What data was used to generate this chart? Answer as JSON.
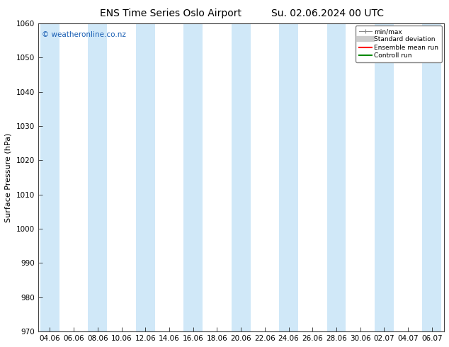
{
  "title_left": "ENS Time Series Oslo Airport",
  "title_right": "Su. 02.06.2024 00 UTC",
  "ylabel": "Surface Pressure (hPa)",
  "ylim": [
    970,
    1060
  ],
  "yticks": [
    970,
    980,
    990,
    1000,
    1010,
    1020,
    1030,
    1040,
    1050,
    1060
  ],
  "x_labels": [
    "04.06",
    "06.06",
    "08.06",
    "10.06",
    "12.06",
    "14.06",
    "16.06",
    "18.06",
    "20.06",
    "22.06",
    "24.06",
    "26.06",
    "28.06",
    "30.06",
    "02.07",
    "04.07",
    "06.07"
  ],
  "watermark": "© weatheronline.co.nz",
  "watermark_color": "#1a5fb4",
  "bg_color": "#ffffff",
  "plot_bg_color": "#ffffff",
  "shaded_band_color": "#d0e8f8",
  "shaded_band_alpha": 1.0,
  "legend_items": [
    {
      "label": "min/max",
      "color": "#aaaaaa",
      "lw": 1.0
    },
    {
      "label": "Standard deviation",
      "color": "#cccccc",
      "lw": 5
    },
    {
      "label": "Ensemble mean run",
      "color": "#ff0000",
      "lw": 1.5
    },
    {
      "label": "Controll run",
      "color": "#008800",
      "lw": 1.5
    }
  ],
  "spine_color": "#444444",
  "tick_color": "#000000",
  "title_fontsize": 10,
  "label_fontsize": 8,
  "tick_fontsize": 7.5,
  "watermark_fontsize": 7.5
}
